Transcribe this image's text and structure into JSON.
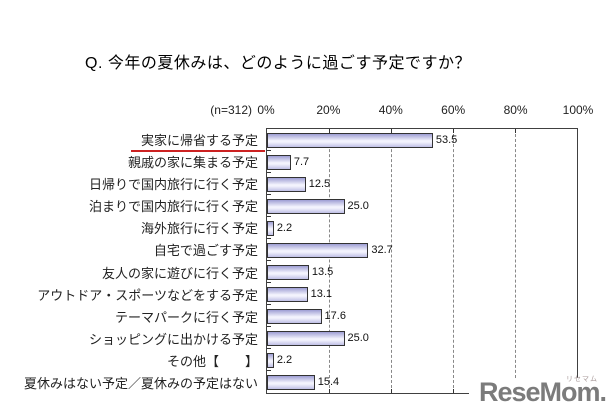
{
  "chart_data": {
    "type": "bar",
    "orientation": "horizontal",
    "title": "Q. 今年の夏休みは、どのように過ごす予定ですか？",
    "sample_label": "(n=312)",
    "categories": [
      "実家に帰省する予定",
      "親戚の家に集まる予定",
      "日帰りで国内旅行に行く予定",
      "泊まりで国内旅行に行く予定",
      "海外旅行に行く予定",
      "自宅で過ごす予定",
      "友人の家に遊びに行く予定",
      "アウトドア・スポーツなどをする予定",
      "テーマパークに行く予定",
      "ショッピングに出かける予定",
      "その他【　　】",
      "夏休みはない予定／夏休みの予定はない"
    ],
    "values": [
      53.5,
      7.7,
      12.5,
      25.0,
      2.2,
      32.7,
      13.5,
      13.1,
      17.6,
      25.0,
      2.2,
      15.4
    ],
    "value_labels": [
      "53.5",
      "7.7",
      "12.5",
      "25.0",
      "2.2",
      "32.7",
      "13.5",
      "13.1",
      "17.6",
      "25.0",
      "2.2",
      "15.4"
    ],
    "xlabel": "",
    "ylabel": "",
    "xlim": [
      0,
      100
    ],
    "x_ticks": [
      "0%",
      "20%",
      "40%",
      "60%",
      "80%",
      "100%"
    ],
    "grid": "dashed-vertical",
    "legend": "none",
    "highlighted_category": "実家に帰省する予定",
    "highlight_color": "#cc2222",
    "bar_fill_top": "#9e9ed4",
    "bar_fill_mid": "#f3f3fd",
    "bar_fill_bottom": "#bfbfe6",
    "bar_border": "#333333"
  },
  "logo": {
    "text": "ReseMom.",
    "small_text": "リセマム"
  }
}
